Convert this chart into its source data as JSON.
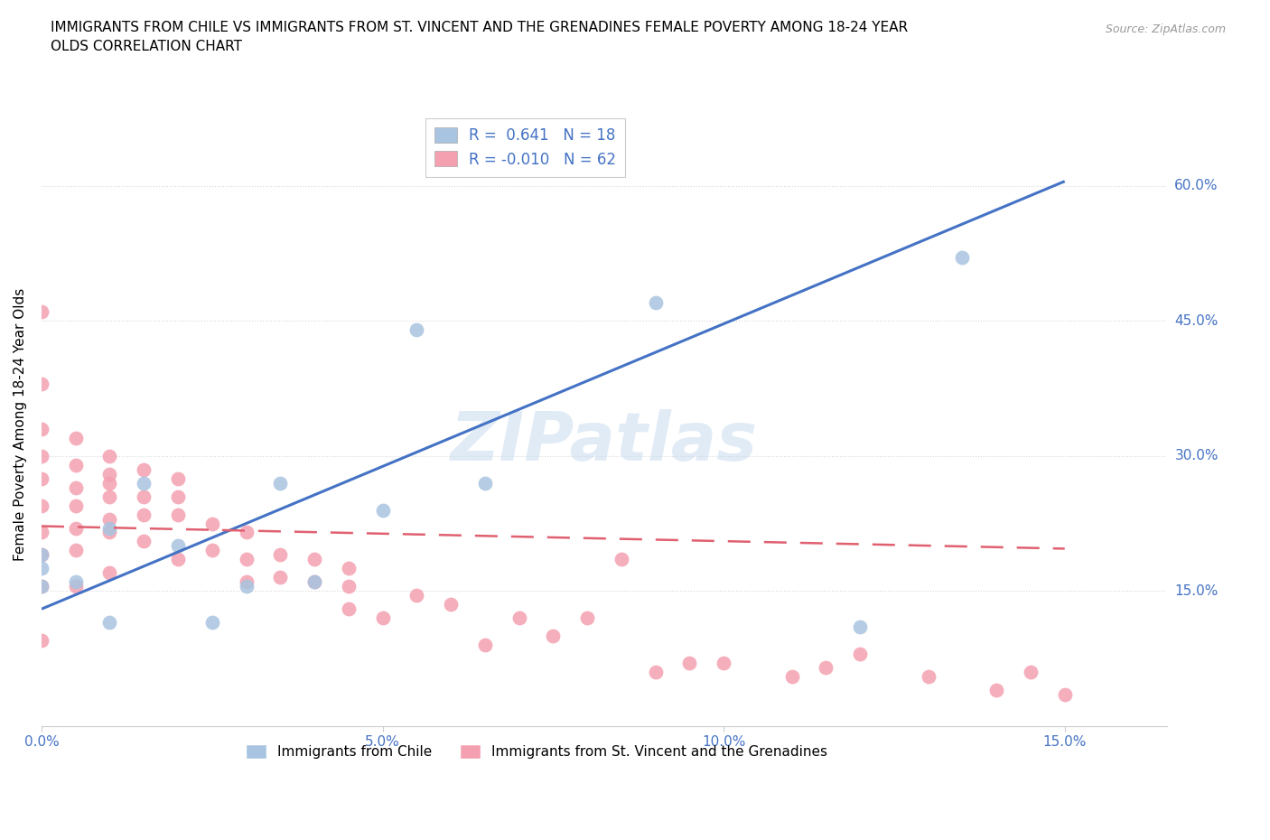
{
  "title": "IMMIGRANTS FROM CHILE VS IMMIGRANTS FROM ST. VINCENT AND THE GRENADINES FEMALE POVERTY AMONG 18-24 YEAR\nOLDS CORRELATION CHART",
  "source": "Source: ZipAtlas.com",
  "ylabel": "Female Poverty Among 18-24 Year Olds",
  "ytick_labels": [
    "15.0%",
    "30.0%",
    "45.0%",
    "60.0%"
  ],
  "ytick_values": [
    0.15,
    0.3,
    0.45,
    0.6
  ],
  "xtick_labels": [
    "0.0%",
    "5.0%",
    "10.0%",
    "15.0%"
  ],
  "xtick_values": [
    0.0,
    0.05,
    0.1,
    0.15
  ],
  "xlim": [
    0.0,
    0.165
  ],
  "ylim": [
    0.0,
    0.67
  ],
  "watermark": "ZIPatlas",
  "chile_R": 0.641,
  "chile_N": 18,
  "svg_R": -0.01,
  "svg_N": 62,
  "chile_color": "#a8c4e0",
  "svg_color": "#f4a0b0",
  "chile_line_color": "#4472c4",
  "svg_line_color": "#e06070",
  "grid_color": "#d8d8d8",
  "tick_label_color": "#4472c4",
  "chile_line_x0": 0.0,
  "chile_line_y0": 0.13,
  "chile_line_x1": 0.15,
  "chile_line_y1": 0.605,
  "svg_line_x0": 0.0,
  "svg_line_y0": 0.222,
  "svg_line_x1": 0.15,
  "svg_line_y1": 0.197,
  "chile_scatter_x": [
    0.0,
    0.0,
    0.0,
    0.005,
    0.01,
    0.01,
    0.015,
    0.02,
    0.025,
    0.03,
    0.035,
    0.04,
    0.05,
    0.055,
    0.065,
    0.09,
    0.12,
    0.135
  ],
  "chile_scatter_y": [
    0.155,
    0.175,
    0.19,
    0.16,
    0.115,
    0.22,
    0.27,
    0.2,
    0.115,
    0.155,
    0.27,
    0.16,
    0.24,
    0.44,
    0.27,
    0.47,
    0.11,
    0.52
  ],
  "svg_scatter_x": [
    0.0,
    0.0,
    0.0,
    0.0,
    0.0,
    0.0,
    0.0,
    0.0,
    0.0,
    0.0,
    0.005,
    0.005,
    0.005,
    0.005,
    0.005,
    0.005,
    0.005,
    0.01,
    0.01,
    0.01,
    0.01,
    0.01,
    0.01,
    0.01,
    0.015,
    0.015,
    0.015,
    0.015,
    0.02,
    0.02,
    0.02,
    0.02,
    0.025,
    0.025,
    0.03,
    0.03,
    0.03,
    0.035,
    0.035,
    0.04,
    0.04,
    0.045,
    0.045,
    0.045,
    0.05,
    0.055,
    0.06,
    0.065,
    0.07,
    0.075,
    0.08,
    0.085,
    0.09,
    0.095,
    0.1,
    0.11,
    0.115,
    0.12,
    0.13,
    0.14,
    0.145,
    0.15
  ],
  "svg_scatter_y": [
    0.46,
    0.38,
    0.33,
    0.3,
    0.275,
    0.245,
    0.215,
    0.19,
    0.155,
    0.095,
    0.32,
    0.29,
    0.265,
    0.245,
    0.22,
    0.195,
    0.155,
    0.3,
    0.28,
    0.27,
    0.255,
    0.23,
    0.215,
    0.17,
    0.285,
    0.255,
    0.235,
    0.205,
    0.275,
    0.255,
    0.235,
    0.185,
    0.225,
    0.195,
    0.215,
    0.185,
    0.16,
    0.19,
    0.165,
    0.185,
    0.16,
    0.175,
    0.155,
    0.13,
    0.12,
    0.145,
    0.135,
    0.09,
    0.12,
    0.1,
    0.12,
    0.185,
    0.06,
    0.07,
    0.07,
    0.055,
    0.065,
    0.08,
    0.055,
    0.04,
    0.06,
    0.035
  ]
}
